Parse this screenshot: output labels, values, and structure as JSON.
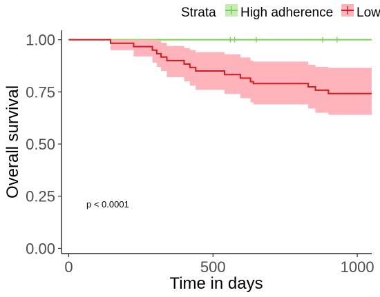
{
  "chart_data": {
    "type": "line",
    "subtype": "kaplan-meier",
    "title": "",
    "xlabel": "Time in days",
    "ylabel": "Overall survival",
    "xlim": [
      -25,
      1050
    ],
    "ylim": [
      -0.025,
      1.045
    ],
    "x_ticks": [
      0,
      500,
      1000
    ],
    "y_ticks": [
      0.0,
      0.25,
      0.5,
      0.75,
      1.0
    ],
    "y_tick_labels": [
      "0.00",
      "0.25",
      "0.50",
      "0.75",
      "1.00"
    ],
    "grid": false,
    "legend": {
      "title": "Strata",
      "position": "top",
      "entries": [
        "High adherence",
        "Low adherence"
      ]
    },
    "annotation": "p < 0.0001",
    "series": [
      {
        "name": "High adherence",
        "color": "#7ad151",
        "band_color": "#c5ecb2",
        "steps": [
          [
            0,
            1.0
          ],
          [
            1050,
            1.0
          ]
        ],
        "censor_times": [
          560,
          575,
          650,
          880,
          930
        ]
      },
      {
        "name": "Low adherence",
        "color": "#d7191c",
        "band_color": "#ffb3ba",
        "steps": [
          [
            0,
            1.0
          ],
          [
            145,
            0.983
          ],
          [
            225,
            0.967
          ],
          [
            290,
            0.95
          ],
          [
            305,
            0.933
          ],
          [
            320,
            0.917
          ],
          [
            340,
            0.9
          ],
          [
            400,
            0.883
          ],
          [
            420,
            0.867
          ],
          [
            440,
            0.85
          ],
          [
            540,
            0.833
          ],
          [
            595,
            0.816
          ],
          [
            630,
            0.799
          ],
          [
            640,
            0.79
          ],
          [
            830,
            0.774
          ],
          [
            855,
            0.758
          ],
          [
            900,
            0.742
          ],
          [
            1050,
            0.742
          ]
        ],
        "ci_lower": [
          1.0,
          0.95,
          0.92,
          0.89,
          0.87,
          0.85,
          0.82,
          0.8,
          0.78,
          0.76,
          0.74,
          0.72,
          0.7,
          0.69,
          0.67,
          0.65,
          0.64,
          0.64
        ],
        "ci_upper": [
          1.0,
          1.0,
          1.0,
          1.0,
          0.995,
          0.985,
          0.97,
          0.96,
          0.95,
          0.94,
          0.93,
          0.915,
          0.9,
          0.895,
          0.88,
          0.87,
          0.865,
          0.865
        ]
      }
    ]
  }
}
